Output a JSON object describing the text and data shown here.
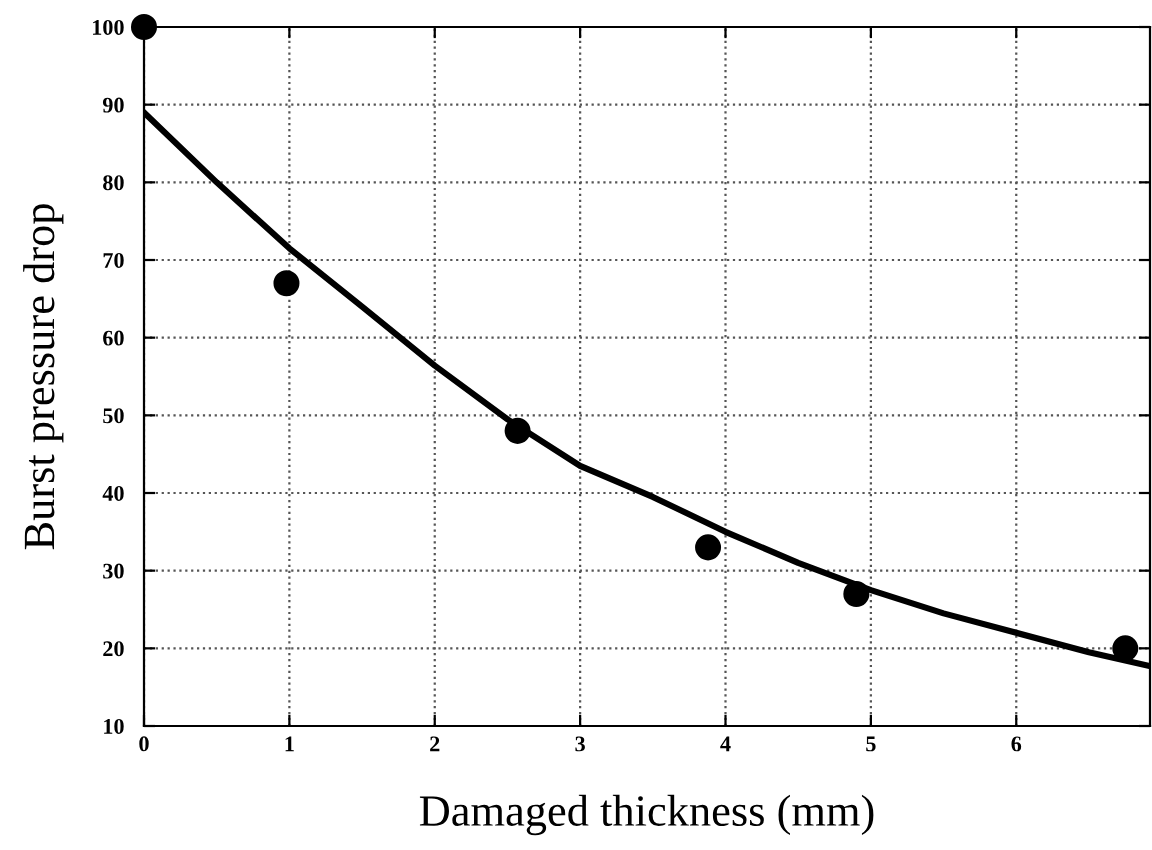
{
  "chart_data": {
    "type": "scatter",
    "xlabel": "Damaged thickness (mm)",
    "ylabel": "Burst pressure drop",
    "xlim": [
      0,
      6.92
    ],
    "ylim": [
      10,
      100
    ],
    "xticks": [
      0,
      1,
      2,
      3,
      4,
      5,
      6
    ],
    "yticks": [
      10,
      20,
      30,
      40,
      50,
      60,
      70,
      80,
      90,
      100
    ],
    "grid": true,
    "series": [
      {
        "color": "#000000",
        "marker": "circle",
        "x": [
          0,
          0.98,
          2.57,
          3.88,
          4.9,
          6.75
        ],
        "values": [
          100,
          67,
          48,
          33,
          27,
          20
        ]
      },
      {
        "type": "line",
        "color": "#000000",
        "line_style": "solid",
        "x": [
          0,
          0.5,
          1,
          1.5,
          2,
          2.5,
          3,
          3.5,
          4,
          4.5,
          5,
          5.5,
          6,
          6.5,
          6.92
        ],
        "values": [
          89,
          80,
          71.5,
          64,
          56.4,
          49.5,
          43.5,
          39.5,
          35,
          31,
          27.5,
          24.5,
          22,
          19.5,
          17.7
        ]
      }
    ]
  }
}
